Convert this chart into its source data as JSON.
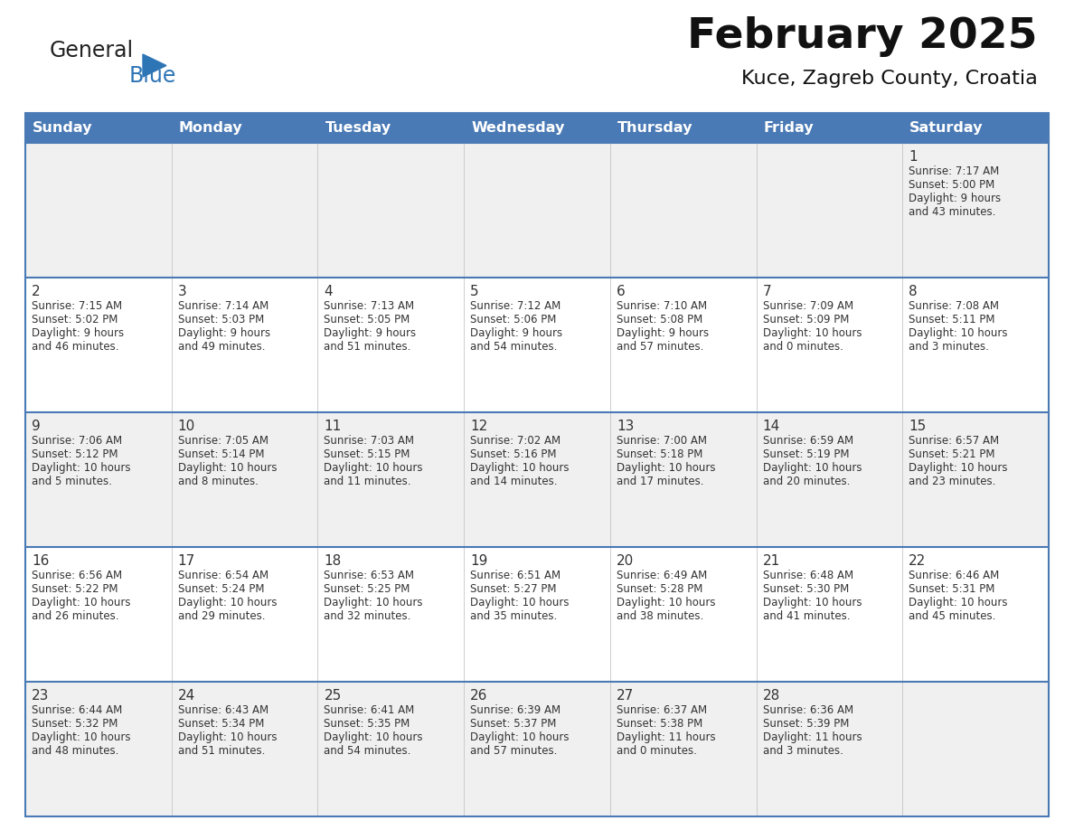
{
  "title": "February 2025",
  "subtitle": "Kuce, Zagreb County, Croatia",
  "header_color": "#4a7ab5",
  "header_text_color": "#FFFFFF",
  "row_bg_odd": "#f0f0f0",
  "row_bg_even": "#FFFFFF",
  "border_color": "#4a7ab5",
  "text_color": "#333333",
  "day_num_color": "#333333",
  "days_of_week": [
    "Sunday",
    "Monday",
    "Tuesday",
    "Wednesday",
    "Thursday",
    "Friday",
    "Saturday"
  ],
  "logo_general_color": "#222222",
  "logo_blue_color": "#2E75B6",
  "logo_triangle_color": "#2E75B6",
  "calendar_data": [
    [
      null,
      null,
      null,
      null,
      null,
      null,
      {
        "day": "1",
        "sunrise": "7:17 AM",
        "sunset": "5:00 PM",
        "daylight": "9 hours",
        "daylight2": "and 43 minutes."
      }
    ],
    [
      {
        "day": "2",
        "sunrise": "7:15 AM",
        "sunset": "5:02 PM",
        "daylight": "9 hours",
        "daylight2": "and 46 minutes."
      },
      {
        "day": "3",
        "sunrise": "7:14 AM",
        "sunset": "5:03 PM",
        "daylight": "9 hours",
        "daylight2": "and 49 minutes."
      },
      {
        "day": "4",
        "sunrise": "7:13 AM",
        "sunset": "5:05 PM",
        "daylight": "9 hours",
        "daylight2": "and 51 minutes."
      },
      {
        "day": "5",
        "sunrise": "7:12 AM",
        "sunset": "5:06 PM",
        "daylight": "9 hours",
        "daylight2": "and 54 minutes."
      },
      {
        "day": "6",
        "sunrise": "7:10 AM",
        "sunset": "5:08 PM",
        "daylight": "9 hours",
        "daylight2": "and 57 minutes."
      },
      {
        "day": "7",
        "sunrise": "7:09 AM",
        "sunset": "5:09 PM",
        "daylight": "10 hours",
        "daylight2": "and 0 minutes."
      },
      {
        "day": "8",
        "sunrise": "7:08 AM",
        "sunset": "5:11 PM",
        "daylight": "10 hours",
        "daylight2": "and 3 minutes."
      }
    ],
    [
      {
        "day": "9",
        "sunrise": "7:06 AM",
        "sunset": "5:12 PM",
        "daylight": "10 hours",
        "daylight2": "and 5 minutes."
      },
      {
        "day": "10",
        "sunrise": "7:05 AM",
        "sunset": "5:14 PM",
        "daylight": "10 hours",
        "daylight2": "and 8 minutes."
      },
      {
        "day": "11",
        "sunrise": "7:03 AM",
        "sunset": "5:15 PM",
        "daylight": "10 hours",
        "daylight2": "and 11 minutes."
      },
      {
        "day": "12",
        "sunrise": "7:02 AM",
        "sunset": "5:16 PM",
        "daylight": "10 hours",
        "daylight2": "and 14 minutes."
      },
      {
        "day": "13",
        "sunrise": "7:00 AM",
        "sunset": "5:18 PM",
        "daylight": "10 hours",
        "daylight2": "and 17 minutes."
      },
      {
        "day": "14",
        "sunrise": "6:59 AM",
        "sunset": "5:19 PM",
        "daylight": "10 hours",
        "daylight2": "and 20 minutes."
      },
      {
        "day": "15",
        "sunrise": "6:57 AM",
        "sunset": "5:21 PM",
        "daylight": "10 hours",
        "daylight2": "and 23 minutes."
      }
    ],
    [
      {
        "day": "16",
        "sunrise": "6:56 AM",
        "sunset": "5:22 PM",
        "daylight": "10 hours",
        "daylight2": "and 26 minutes."
      },
      {
        "day": "17",
        "sunrise": "6:54 AM",
        "sunset": "5:24 PM",
        "daylight": "10 hours",
        "daylight2": "and 29 minutes."
      },
      {
        "day": "18",
        "sunrise": "6:53 AM",
        "sunset": "5:25 PM",
        "daylight": "10 hours",
        "daylight2": "and 32 minutes."
      },
      {
        "day": "19",
        "sunrise": "6:51 AM",
        "sunset": "5:27 PM",
        "daylight": "10 hours",
        "daylight2": "and 35 minutes."
      },
      {
        "day": "20",
        "sunrise": "6:49 AM",
        "sunset": "5:28 PM",
        "daylight": "10 hours",
        "daylight2": "and 38 minutes."
      },
      {
        "day": "21",
        "sunrise": "6:48 AM",
        "sunset": "5:30 PM",
        "daylight": "10 hours",
        "daylight2": "and 41 minutes."
      },
      {
        "day": "22",
        "sunrise": "6:46 AM",
        "sunset": "5:31 PM",
        "daylight": "10 hours",
        "daylight2": "and 45 minutes."
      }
    ],
    [
      {
        "day": "23",
        "sunrise": "6:44 AM",
        "sunset": "5:32 PM",
        "daylight": "10 hours",
        "daylight2": "and 48 minutes."
      },
      {
        "day": "24",
        "sunrise": "6:43 AM",
        "sunset": "5:34 PM",
        "daylight": "10 hours",
        "daylight2": "and 51 minutes."
      },
      {
        "day": "25",
        "sunrise": "6:41 AM",
        "sunset": "5:35 PM",
        "daylight": "10 hours",
        "daylight2": "and 54 minutes."
      },
      {
        "day": "26",
        "sunrise": "6:39 AM",
        "sunset": "5:37 PM",
        "daylight": "10 hours",
        "daylight2": "and 57 minutes."
      },
      {
        "day": "27",
        "sunrise": "6:37 AM",
        "sunset": "5:38 PM",
        "daylight": "11 hours",
        "daylight2": "and 0 minutes."
      },
      {
        "day": "28",
        "sunrise": "6:36 AM",
        "sunset": "5:39 PM",
        "daylight": "11 hours",
        "daylight2": "and 3 minutes."
      },
      null
    ]
  ]
}
